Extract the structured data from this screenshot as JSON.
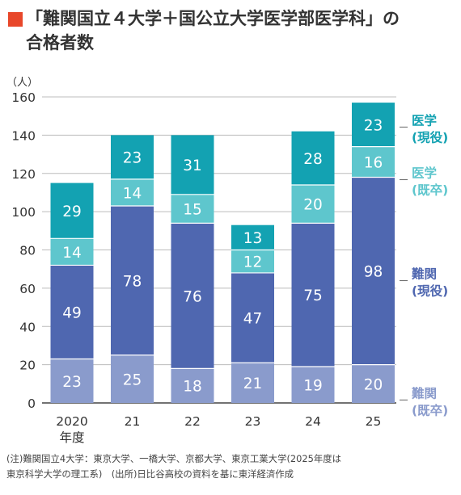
{
  "title": {
    "line1": "「難関国立４大学＋国公立大学医学部医学科」の",
    "line2": "合格者数"
  },
  "footnote": {
    "line1": "(注)難関国立4大学：東京大学、一橋大学、京都大学、東京工業大学(2025年度は",
    "line2": "東京科学大学の理工系)　(出所)日比谷高校の資料を基に東洋経済作成"
  },
  "colors": {
    "nankan_kisotsu": "#8a9bcc",
    "nankan_geneki": "#4f67b0",
    "igaku_kisotsu": "#5ec6cd",
    "igaku_geneki": "#13a2b2",
    "label_nankan": "#4f67b0",
    "label_igaku": "#13a2b2",
    "label_nankan_kisotsu": "#8a9bcc",
    "label_igaku_kisotsu": "#5ec6cd"
  },
  "chart_data": {
    "type": "bar",
    "stacked": true,
    "unit_label": "（人）",
    "ylim": [
      0,
      160
    ],
    "yticks": [
      0,
      20,
      40,
      60,
      80,
      100,
      120,
      140,
      160
    ],
    "categories": [
      "2020\n年度",
      "21",
      "22",
      "23",
      "24",
      "25"
    ],
    "series": [
      {
        "name": "難関\n(既卒)",
        "values": [
          23,
          25,
          18,
          21,
          19,
          20
        ]
      },
      {
        "name": "難関\n(現役)",
        "values": [
          49,
          78,
          76,
          47,
          75,
          98
        ]
      },
      {
        "name": "医学\n(既卒)",
        "values": [
          14,
          14,
          15,
          12,
          20,
          16
        ]
      },
      {
        "name": "医学\n(現役)",
        "values": [
          29,
          23,
          31,
          13,
          28,
          23
        ]
      }
    ],
    "grid": true
  }
}
